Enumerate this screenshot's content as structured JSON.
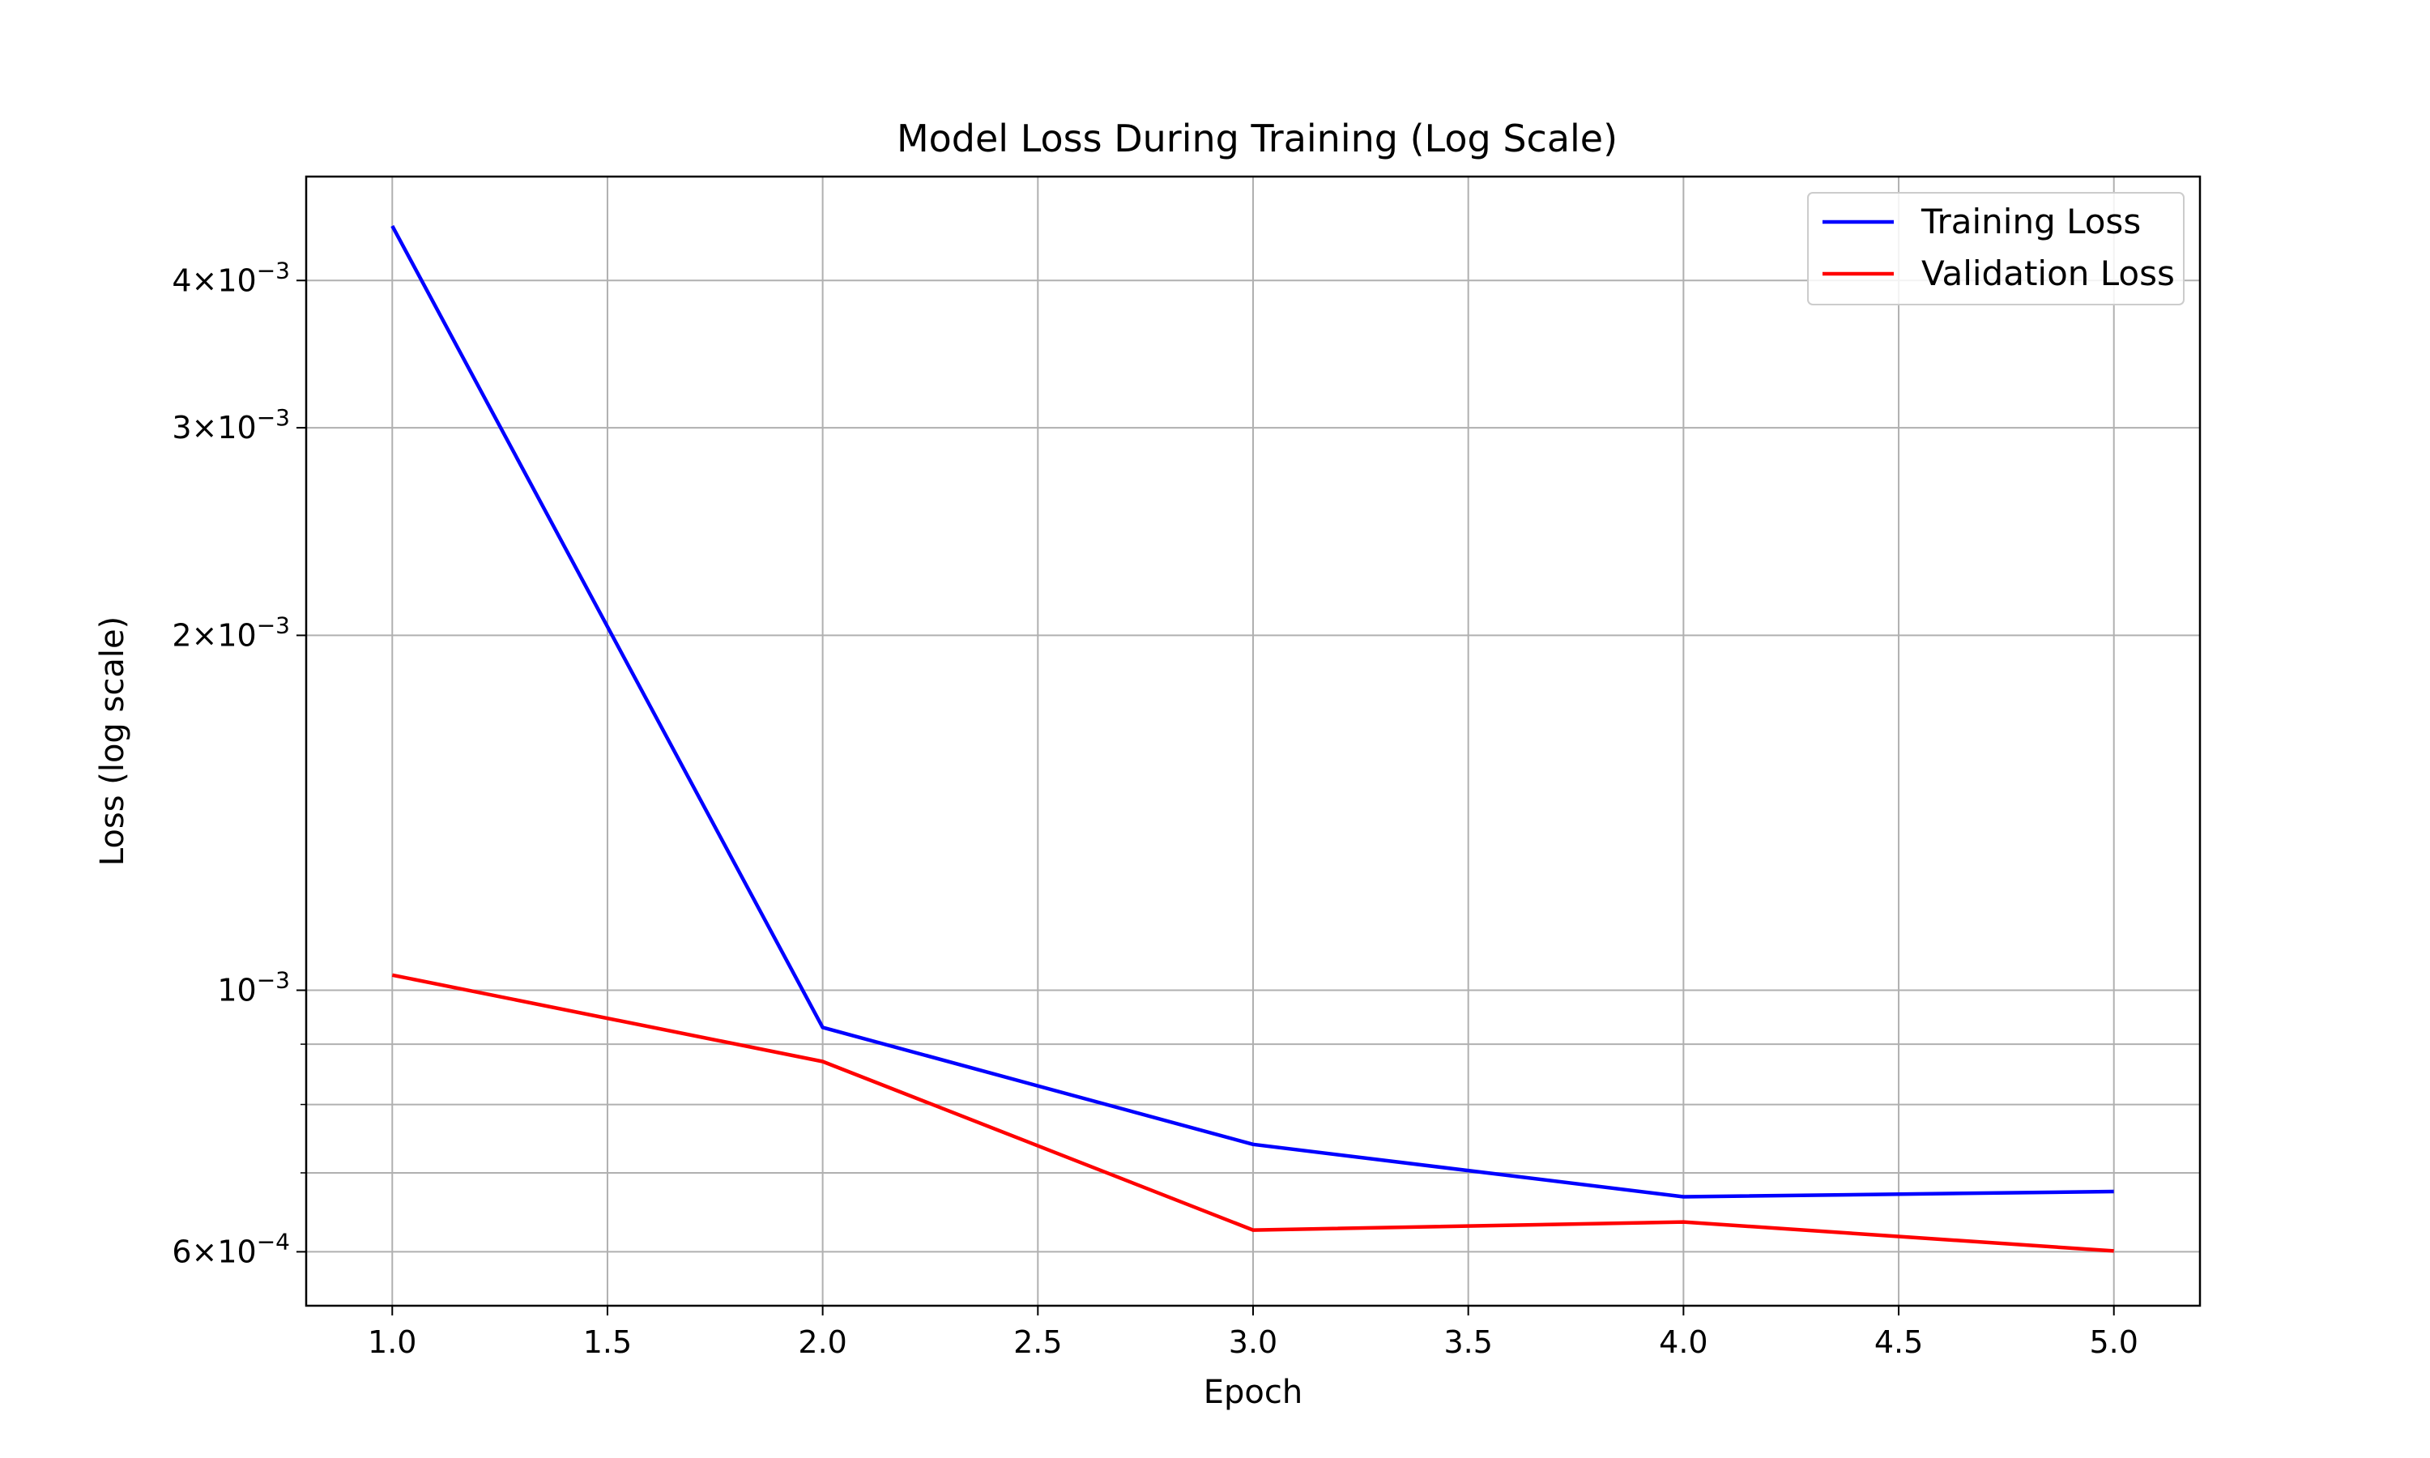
{
  "chart_data": {
    "type": "line",
    "title": "Model Loss During Training (Log Scale)",
    "xlabel": "Epoch",
    "ylabel": "Loss (log scale)",
    "yscale": "log",
    "xlim": [
      0.8,
      5.2
    ],
    "ylim": [
      0.00054,
      0.0049
    ],
    "grid": true,
    "legend_position": "top-right",
    "x_ticks": [
      1.0,
      1.5,
      2.0,
      2.5,
      3.0,
      3.5,
      4.0,
      4.5,
      5.0
    ],
    "x_tick_labels": [
      "1.0",
      "1.5",
      "2.0",
      "2.5",
      "3.0",
      "3.5",
      "4.0",
      "4.5",
      "5.0"
    ],
    "y_major_ticks": [
      {
        "value": 0.004,
        "mantissa": "4",
        "exponent": "−3"
      },
      {
        "value": 0.003,
        "mantissa": "3",
        "exponent": "−3"
      },
      {
        "value": 0.002,
        "mantissa": "2",
        "exponent": "−3"
      },
      {
        "value": 0.001,
        "mantissa": "",
        "exponent": "−3"
      },
      {
        "value": 0.0006,
        "mantissa": "6",
        "exponent": "−4"
      }
    ],
    "y_minor_ticks": [
      0.0009,
      0.0008,
      0.0007
    ],
    "x": [
      1,
      2,
      3,
      4,
      5
    ],
    "series": [
      {
        "name": "Training Loss",
        "color": "#0000ff",
        "values": [
          0.00445,
          0.00093,
          0.00074,
          0.000668,
          0.000675
        ]
      },
      {
        "name": "Validation Loss",
        "color": "#ff0000",
        "values": [
          0.00103,
          0.00087,
          0.000626,
          0.000636,
          0.000601
        ]
      }
    ]
  }
}
